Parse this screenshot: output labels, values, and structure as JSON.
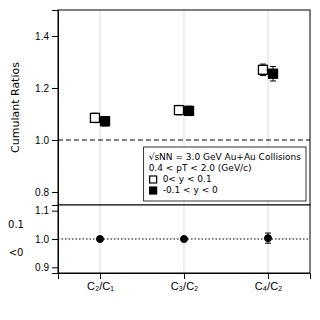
{
  "chart_data": [
    {
      "type": "scatter",
      "ylabel": "Cumulant Ratios",
      "categories": [
        "C₂/C₁",
        "C₃/C₂",
        "C₄/C₂"
      ],
      "series": [
        {
          "name": "0< y < 0.1",
          "marker": "square-open",
          "color": "#000000",
          "values": [
            1.085,
            1.115,
            1.27
          ],
          "errors": [
            0.018,
            0.018,
            0.022
          ]
        },
        {
          "name": "-0.1 < y < 0",
          "marker": "square",
          "color": "#000000",
          "values": [
            1.072,
            1.112,
            1.255
          ],
          "errors": [
            0.018,
            0.018,
            0.028
          ]
        }
      ],
      "annotations": [
        "√sNN = 3.0 GeV Au+Au Collisions",
        "0.4 < pT < 2.0 (GeV/c)"
      ],
      "reference_lines": [
        {
          "y": 1.0,
          "line_style": "dashed"
        }
      ],
      "ylim": [
        0.75,
        1.5
      ],
      "yticks": [
        0.8,
        {
          "value": 1.0,
          "label": "1.0"
        },
        1.2,
        1.4
      ],
      "grid": "x",
      "legend": "lower right",
      "tick_labels": "y"
    },
    {
      "type": "scatter",
      "ylabel": [
        "0.1",
        "<0"
      ],
      "categories": [
        "C₂/C₁",
        "C₃/C₂",
        "C₄/C₂"
      ],
      "series": [
        {
          "marker": "circle",
          "color": "#000000",
          "values": [
            1.0,
            1.0,
            1.003
          ],
          "errors": [
            0.008,
            0.008,
            0.018
          ]
        }
      ],
      "reference_lines": [
        {
          "y": 1.0,
          "line_style": "dotted"
        }
      ],
      "ylim": [
        0.88,
        1.12
      ],
      "yticks": [
        0.9,
        {
          "value": 1.0,
          "label": "1.0"
        },
        1.1
      ],
      "grid": "x"
    }
  ]
}
